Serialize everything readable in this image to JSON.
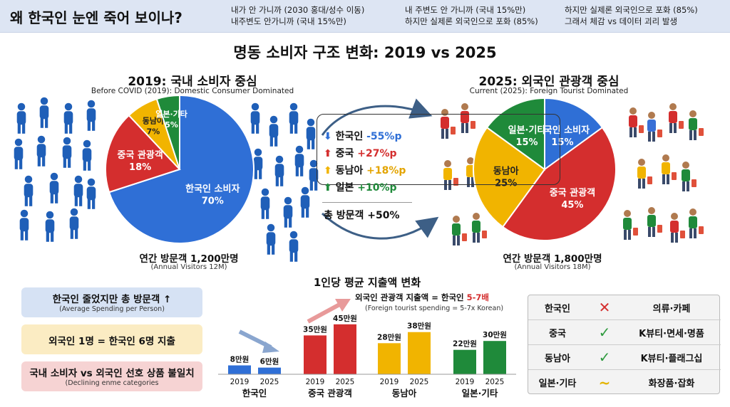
{
  "header": {
    "headline": "왜 한국인 눈엔 죽어 보이나?",
    "notes": [
      "내가 안 가니까 (2030 홍대/성수 이동)\n내주변도 안가니까 (국내 15%만)",
      "내 주변도 안 가니까 (국내 15%만)\n하지만 실제론 외국인으로 포화 (85%)",
      "하지만 실제론 외국인으로 포화 (85%)\n그래서 체감 vs 데이터 괴리 발생"
    ]
  },
  "title": "명동 소비자 구조 변화: 2019 vs 2025",
  "left_panel": {
    "title": "2019: 국내 소비자 중심",
    "subtitle": "Before COVID (2019): Domestic Consumer Dominated",
    "visitors": "연간 방문객 1,200만명",
    "visitors_en": "(Annual Visitors 12M)"
  },
  "right_panel": {
    "title": "2025: 외국인 관광객 중심",
    "subtitle": "Current (2025): Foreign Tourist Dominated",
    "visitors": "연간 방문객 1,800만명",
    "visitors_en": "(Annual Visitors 18M)"
  },
  "changes": [
    {
      "label": "한국인 ",
      "value": "-55%p",
      "arrow": "down",
      "color": "#2f6fd6",
      "arrow_color": "#2f6fd6"
    },
    {
      "label": "중국 ",
      "value": "+27%p",
      "arrow": "up",
      "color": "#d42e2e",
      "arrow_color": "#d42e2e"
    },
    {
      "label": "동남아 ",
      "value": "+18%p",
      "arrow": "up",
      "color": "#e3a400",
      "arrow_color": "#f1b400"
    },
    {
      "label": "일본 ",
      "value": "+10%p",
      "arrow": "up",
      "color": "#1f8a3a",
      "arrow_color": "#1f8a3a"
    }
  ],
  "total_change": "총 방문객 +50%",
  "info_boxes": [
    {
      "text": "한국인 줄었지만 총 방문객 ↑",
      "sub": "(Average Spending per Person)",
      "bg": "#d6e2f4"
    },
    {
      "text": "외국인 1명 = 한국인 6명 지출",
      "sub": "",
      "bg": "#fbecc3"
    },
    {
      "text": "국내 소비자 vs 외국인 선호 상품 불일치",
      "sub": "(Declining enme categories",
      "bg": "#f6d3d3"
    }
  ],
  "spending": {
    "title": "1인당 평균 지출액 변화",
    "note_prefix": "외국인 관광객 지출액 = 한국인 ",
    "note_highlight": "5-7배",
    "note_en": "(Foreign tourist spending = 5-7x Korean)"
  },
  "table": [
    {
      "group": "한국인",
      "mark": "✕",
      "mark_color": "#d42e2e",
      "products": "의류·카페"
    },
    {
      "group": "중국",
      "mark": "✓",
      "mark_color": "#2e9a3e",
      "products": "K뷰티·면세·명품"
    },
    {
      "group": "동남아",
      "mark": "✓",
      "mark_color": "#2e9a3e",
      "products": "K뷰티·플래그십"
    },
    {
      "group": "일본·기타",
      "mark": "~",
      "mark_color": "#e3b400",
      "products": "화장품·잡화"
    }
  ],
  "chart_data": [
    {
      "type": "pie",
      "title": "2019: 국내 소비자 중심",
      "slices": [
        {
          "label": "한국인 소비자",
          "value": 70,
          "text": "70%",
          "color": "#2f6fd6"
        },
        {
          "label": "중국 관광객",
          "value": 18,
          "text": "18%",
          "color": "#d42e2e"
        },
        {
          "label": "동남아",
          "value": 7,
          "text": "7%",
          "color": "#f1b400"
        },
        {
          "label": "일본·기타",
          "value": 5,
          "text": "5%",
          "color": "#1f8a3a"
        }
      ]
    },
    {
      "type": "pie",
      "title": "2025: 외국인 관광객 중심",
      "slices": [
        {
          "label": "한국인 소비자",
          "value": 15,
          "text": "15%",
          "color": "#2f6fd6"
        },
        {
          "label": "중국 관광객",
          "value": 45,
          "text": "45%",
          "color": "#d42e2e"
        },
        {
          "label": "동남아",
          "value": 25,
          "text": "25%",
          "color": "#f1b400"
        },
        {
          "label": "일본·기타",
          "value": 15,
          "text": "15%",
          "color": "#1f8a3a"
        }
      ]
    },
    {
      "type": "bar",
      "title": "1인당 평균 지출액 변화",
      "ylabel": "만원",
      "ylim": [
        0,
        50
      ],
      "series_years": [
        "2019",
        "2025"
      ],
      "groups": [
        {
          "name": "한국인",
          "color": "#2f6fd6",
          "values": [
            8,
            6
          ],
          "labels": [
            "8만원",
            "6만원"
          ]
        },
        {
          "name": "중국 관광객",
          "color": "#d42e2e",
          "values": [
            35,
            45
          ],
          "labels": [
            "35만원",
            "45만원"
          ]
        },
        {
          "name": "동남아",
          "color": "#f1b400",
          "values": [
            28,
            38
          ],
          "labels": [
            "28만원",
            "38만원"
          ]
        },
        {
          "name": "일본·기타",
          "color": "#1f8a3a",
          "values": [
            22,
            30
          ],
          "labels": [
            "22만원",
            "30만원"
          ]
        }
      ]
    }
  ]
}
